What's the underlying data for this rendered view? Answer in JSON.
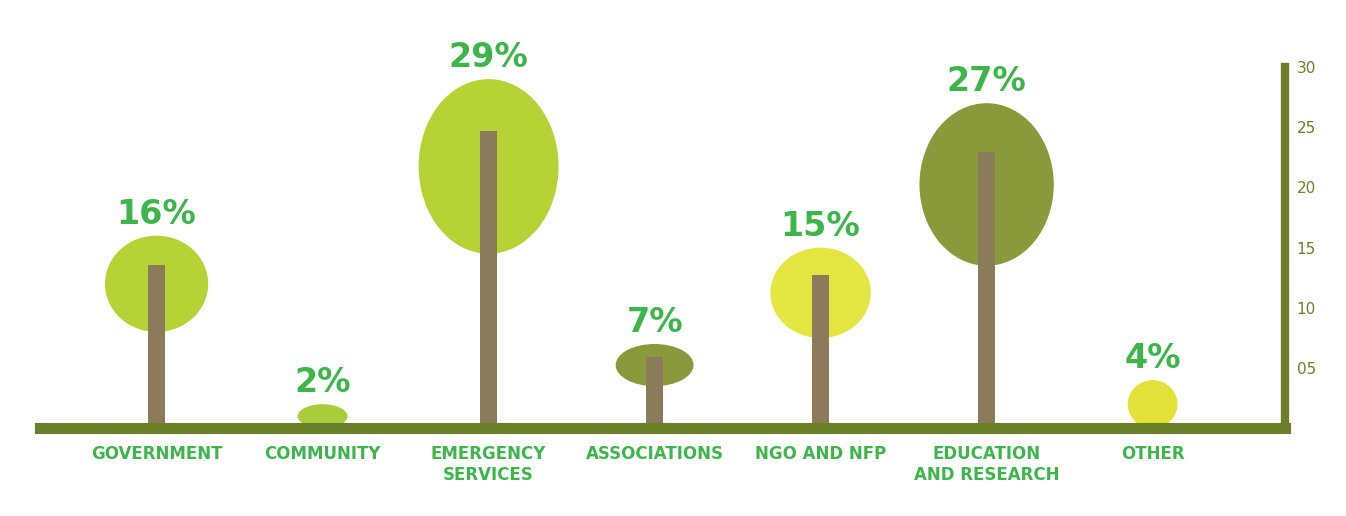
{
  "chart_data": {
    "type": "bar",
    "categories": [
      "GOVERNMENT",
      "COMMUNITY",
      "EMERGENCY SERVICES",
      "ASSOCIATIONS",
      "NGO AND NFP",
      "EDUCATION AND RESEARCH",
      "OTHER"
    ],
    "values": [
      16,
      2,
      29,
      7,
      15,
      27,
      4
    ],
    "value_labels": [
      "16%",
      "2%",
      "29%",
      "7%",
      "15%",
      "27%",
      "4%"
    ],
    "colors": [
      "#b5d334",
      "#a8cd3a",
      "#b5d334",
      "#8a9a3a",
      "#e3e640",
      "#8a9a3a",
      "#e3e23a"
    ],
    "ylim": [
      0,
      30
    ],
    "yticks": [
      {
        "value": 5,
        "label": "05"
      },
      10,
      15,
      20,
      25,
      30
    ],
    "grid": false,
    "data_labels": true
  }
}
